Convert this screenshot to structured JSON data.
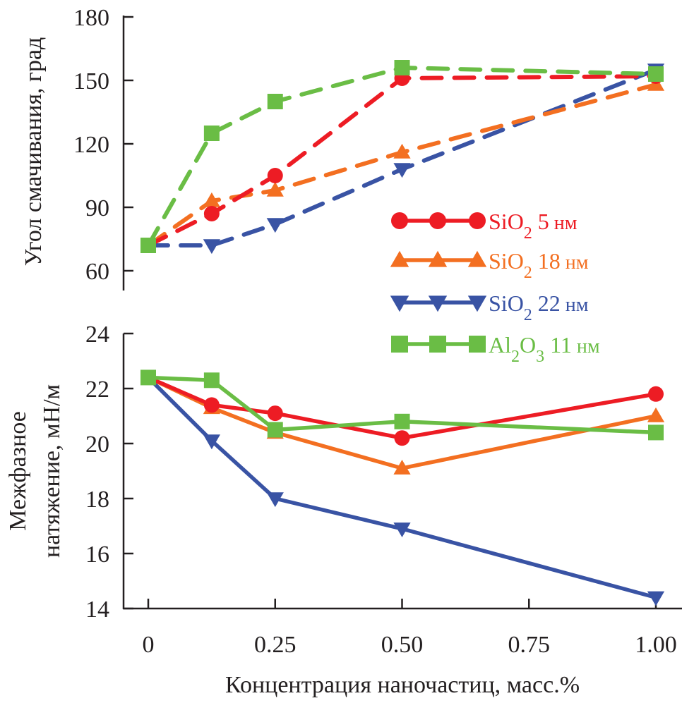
{
  "chart_data": [
    {
      "type": "line",
      "panel": "top",
      "line_style": "dashed",
      "title": "",
      "xlabel": "",
      "ylabel": "Угол смачивания, град",
      "x": [
        0,
        0.125,
        0.25,
        0.5,
        1.0
      ],
      "ylim": [
        55,
        180
      ],
      "yticks": [
        60,
        90,
        120,
        150,
        180
      ],
      "grid": false,
      "series": [
        {
          "key": "sio2_5",
          "name": "SiO2 5 нм",
          "color": "#ed1c24",
          "marker": "circle",
          "values": [
            72,
            87,
            105,
            151,
            152
          ]
        },
        {
          "key": "sio2_18",
          "name": "SiO2 18 нм",
          "color": "#f36f21",
          "marker": "triangle-up",
          "values": [
            72,
            93,
            98,
            116,
            148
          ]
        },
        {
          "key": "sio2_22",
          "name": "SiO2 22 нм",
          "color": "#3953a4",
          "marker": "triangle-down",
          "values": [
            72,
            72,
            82,
            108,
            155
          ]
        },
        {
          "key": "al2o3_11",
          "name": "Al2O3 11 нм",
          "color": "#6abd45",
          "marker": "square",
          "values": [
            72,
            125,
            140,
            156,
            153
          ]
        }
      ]
    },
    {
      "type": "line",
      "panel": "bottom",
      "line_style": "solid",
      "title": "",
      "xlabel": "Концентрация наночастиц, масс.%",
      "ylabel": "Межфазное натяжение, мН/м",
      "x": [
        0,
        0.125,
        0.25,
        0.5,
        1.0
      ],
      "xlim": [
        -0.02,
        1.05
      ],
      "xticks": [
        0,
        0.25,
        0.5,
        0.75,
        1.0
      ],
      "ylim": [
        14,
        24
      ],
      "yticks": [
        14,
        16,
        18,
        20,
        22,
        24
      ],
      "grid": false,
      "legend_position": "top-right",
      "series": [
        {
          "key": "sio2_5",
          "name": "SiO2 5 нм",
          "color": "#ed1c24",
          "marker": "circle",
          "values": [
            22.4,
            21.4,
            21.1,
            20.2,
            21.8
          ]
        },
        {
          "key": "sio2_18",
          "name": "SiO2 18 нм",
          "color": "#f36f21",
          "marker": "triangle-up",
          "values": [
            22.4,
            21.3,
            20.4,
            19.1,
            21.0
          ]
        },
        {
          "key": "sio2_22",
          "name": "SiO2 22 нм",
          "color": "#3953a4",
          "marker": "triangle-down",
          "values": [
            22.4,
            20.1,
            18.0,
            16.9,
            14.4
          ]
        },
        {
          "key": "al2o3_11",
          "name": "Al2O3 11 нм",
          "color": "#6abd45",
          "marker": "square",
          "values": [
            22.4,
            22.3,
            20.5,
            20.8,
            20.4
          ]
        }
      ]
    }
  ],
  "labels": {
    "top_ylabel": "Угол смачивания, град",
    "bottom_ylabel_line1": "Межфазное",
    "bottom_ylabel_line2": "натяжение, мН/м",
    "xlabel": "Концентрация наночастиц, масс.%",
    "xtick_labels": [
      "0",
      "0.25",
      "0.50",
      "0.75",
      "1.00"
    ],
    "top_ytick_labels": [
      "60",
      "90",
      "120",
      "150",
      "180"
    ],
    "bottom_ytick_labels": [
      "14",
      "16",
      "18",
      "20",
      "22",
      "24"
    ]
  },
  "legend": [
    {
      "formula_main": "SiO",
      "sub1": "",
      "mid": "",
      "sub2": "2",
      "size": " 5",
      "unit": " нм",
      "color": "#ed1c24",
      "marker": "circle"
    },
    {
      "formula_main": "SiO",
      "sub1": "",
      "mid": "",
      "sub2": "2",
      "size": " 18",
      "unit": " нм",
      "color": "#f36f21",
      "marker": "triangle-up"
    },
    {
      "formula_main": "SiO",
      "sub1": "",
      "mid": "",
      "sub2": "2",
      "size": " 22",
      "unit": " нм",
      "color": "#3953a4",
      "marker": "triangle-down"
    },
    {
      "formula_main": "Al",
      "sub1": "2",
      "mid": "O",
      "sub2": "3",
      "size": " 11",
      "unit": " нм",
      "color": "#6abd45",
      "marker": "square"
    }
  ]
}
